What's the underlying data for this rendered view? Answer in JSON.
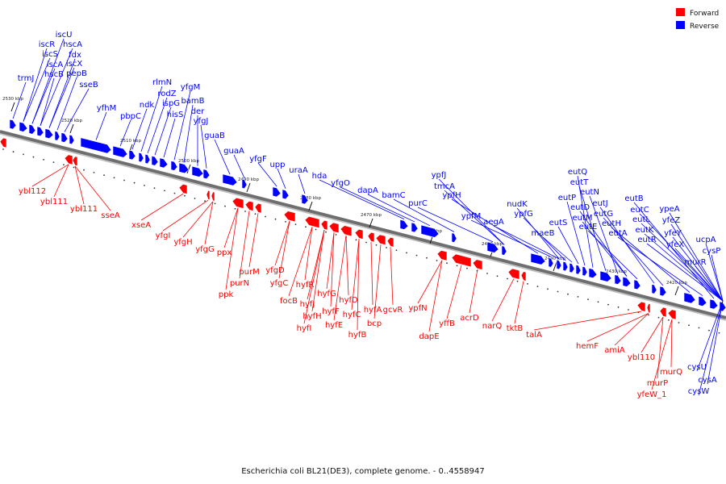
{
  "caption": "Escherichia coli BL21(DE3), complete genome. - 0..4558947",
  "colors": {
    "forward": "#ff0000",
    "reverse": "#0000ff",
    "backbone": "#808080"
  },
  "legend": [
    {
      "key": "forward",
      "label": "Forward"
    },
    {
      "key": "reverse",
      "label": "Reverse"
    }
  ],
  "ticks": [
    "2530 kbp",
    "2520 kbp",
    "2510 kbp",
    "2500 kbp",
    "2490 kbp",
    "2480 kbp",
    "2470 kbp",
    "2460 kbp",
    "2450 kbp",
    "2440 kbp",
    "2430 kbp",
    "2420 kbp"
  ],
  "reverse_genes": [
    "trmJ",
    "iscR",
    "iscS",
    "iscU",
    "iscA",
    "hscB",
    "hscA",
    "fdx",
    "iscX",
    "pepB",
    "sseB",
    "yfhM",
    "pbpC",
    "ndk",
    "rlmN",
    "rodZ",
    "ispG",
    "hisS",
    "yfgM",
    "bamB",
    "der",
    "yfgJ",
    "guaB",
    "guaA",
    "yfgF",
    "upp",
    "uraA",
    "hda",
    "yfgO",
    "dapA",
    "bamC",
    "purC",
    "ypfJ",
    "tmcA",
    "ypfH",
    "ypfM",
    "aegA",
    "nudK",
    "ypfG",
    "maeB",
    "eutS",
    "eutP",
    "eutQ",
    "eutT",
    "eutN",
    "eutM",
    "eutD",
    "eutE",
    "eutJ",
    "eutG",
    "eutH",
    "eutA",
    "eutB",
    "eutC",
    "eutL",
    "eutK",
    "eutR",
    "ypeA",
    "yfeZ",
    "yfeY",
    "yfeX",
    "murR",
    "ucpA",
    "cysP",
    "cysU",
    "cysA",
    "cysW"
  ],
  "forward_genes": [
    "ybl112",
    "ybl111",
    "ybl111",
    "sseA",
    "xseA",
    "yfgI",
    "yfgH",
    "yfgG",
    "ppx",
    "ppk",
    "purN",
    "purM",
    "yfgD",
    "yfgC",
    "focB",
    "hyfR",
    "hyfJ",
    "hyfI",
    "hyfH",
    "hyfG",
    "hyfF",
    "hyfE",
    "hyfD",
    "hyfC",
    "hyfB",
    "hyfA",
    "bcp",
    "gcvR",
    "ypfN",
    "dapE",
    "yffB",
    "acrD",
    "narQ",
    "tktB",
    "talA",
    "hemF",
    "amiA",
    "ybl110",
    "murQ",
    "murP",
    "yfeW_1"
  ]
}
